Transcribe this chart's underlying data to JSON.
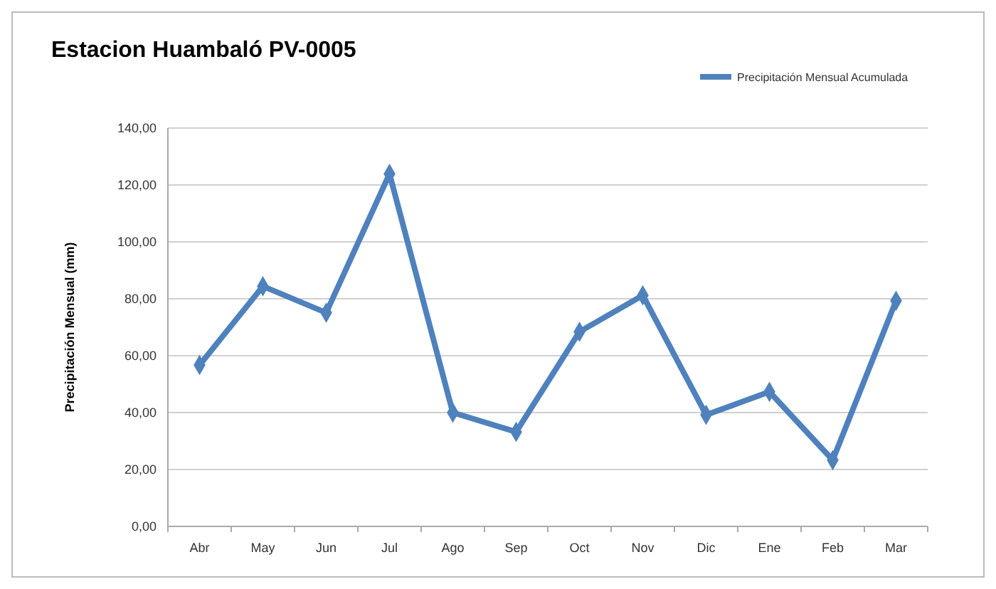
{
  "chart_data": {
    "type": "line",
    "title": "Estacion Huambaló PV-0005",
    "ylabel": "Precipitación Mensual (mm)",
    "categories": [
      "Abr",
      "May",
      "Jun",
      "Jul",
      "Ago",
      "Sep",
      "Oct",
      "Nov",
      "Dic",
      "Ene",
      "Feb",
      "Mar"
    ],
    "series": [
      {
        "name": "Precipitación Mensual Acumulada",
        "color": "#4f81bd",
        "values": [
          56.7,
          84.4,
          75.1,
          123.9,
          40.0,
          33.2,
          68.4,
          81.2,
          39.2,
          47.3,
          23.3,
          79.3
        ]
      }
    ],
    "ylim": [
      0,
      140
    ],
    "yticks": [
      {
        "value": 0,
        "label": "0,00"
      },
      {
        "value": 20,
        "label": "20,00"
      },
      {
        "value": 40,
        "label": "40,00"
      },
      {
        "value": 60,
        "label": "60,00"
      },
      {
        "value": 80,
        "label": "80,00"
      },
      {
        "value": 100,
        "label": "100,00"
      },
      {
        "value": 120,
        "label": "120,00"
      },
      {
        "value": 140,
        "label": "140,00"
      }
    ],
    "grid": "y",
    "legend": "top right",
    "marker": "diamond",
    "line_style": "solid"
  }
}
